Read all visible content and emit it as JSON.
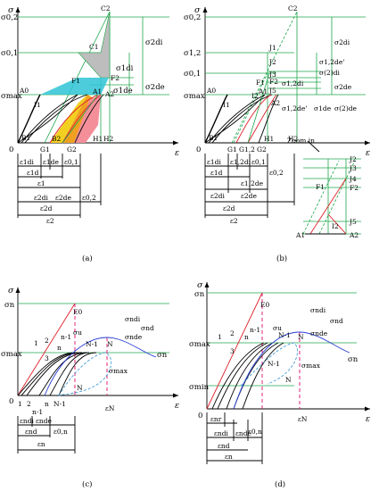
{
  "colors": {
    "green": "#1fa64b",
    "red": "#e0202a",
    "pink": "#e0207a",
    "blue": "#2a3fd6",
    "cyan": "#2ec4d6",
    "orange": "#f0a020",
    "gray": "#bdbdbd",
    "yellow": "#f2d020",
    "salmon": "#f48f9a"
  },
  "panel_a": {
    "caption": "(a)",
    "axis_y": "σ",
    "axis_x": "ε",
    "y_labels": {
      "s02": "σ0,2",
      "s01": "σ0,1",
      "smax": "σmax"
    },
    "origin": "0",
    "points": {
      "C2": "C2",
      "C1": "C1",
      "F1": "F1",
      "F2": "F2",
      "A0": "A0",
      "A1": "A1",
      "A2": "A2",
      "I1": "I1",
      "B1": "B1",
      "B2": "B2",
      "G1": "G1",
      "G2": "G2",
      "H1": "H1",
      "H2": "H2"
    },
    "right_labels": {
      "s2di": "σ2di",
      "s1di": "σ1di",
      "s1de": "σ1de",
      "s2de": "σ2de"
    },
    "bottom_labels": {
      "e1di": "ε1di",
      "e1de": "ε1de",
      "e01": "ε0,1",
      "e1d": "ε1d",
      "e1": "ε1",
      "e2di": "ε2di",
      "e2de": "ε2de",
      "e02": "ε0,2",
      "e2d": "ε2d",
      "e2": "ε2"
    }
  },
  "panel_b": {
    "caption": "(b)",
    "axis_y": "σ",
    "axis_x": "ε",
    "y_labels": {
      "s02": "σ0,2",
      "s12": "σ1,2",
      "s01": "σ0,1",
      "smax": "σmax"
    },
    "origin": "0",
    "points": {
      "C2": "C2",
      "J1": "J1",
      "J2": "J2",
      "J3": "J3",
      "J4": "J4",
      "J5": "J5",
      "F1": "F1",
      "F2": "F2",
      "A0": "A0",
      "A1": "A1",
      "A2": "A2",
      "I1": "I1",
      "I2": "I2",
      "B1": "B1",
      "G1": "G1",
      "G12": "G1,2",
      "G2": "G2",
      "H1": "H1",
      "H2": "H2"
    },
    "zoom": "Zoom in",
    "right_labels": {
      "s1": "σ1",
      "s2di": "σ2di",
      "s12de": "σ1,2de'",
      "s12di": "σ1,2di",
      "s2di2": "σ(2)di",
      "s12dep": "σ1,2de",
      "s2de": "σ2de",
      "s12den": "σ1,2de'",
      "s1de": "σ1de",
      "s2de2": "σ(2)de",
      "s1di": "σ1di",
      "s2de3": "σ(2)de"
    },
    "bottom_labels": {
      "e1di": "ε1di",
      "e12di": "ε1,2di",
      "e01": "ε0,1",
      "e1d": "ε1d",
      "e12de": "ε1,2de",
      "e02": "ε0,2",
      "e2di": "ε2di",
      "e2de": "ε2de",
      "e2d": "ε2d",
      "e2": "ε2"
    }
  },
  "panel_c": {
    "caption": "(c)",
    "axis_y": "σ",
    "axis_x": "ε",
    "y_labels": {
      "sn": "σn",
      "smax": "σmax"
    },
    "origin": "0",
    "curve_labels": {
      "E0": "E0",
      "su": "σu",
      "c1": "1",
      "c2": "2",
      "c3": "3",
      "cn": "n",
      "cn1": "n-1",
      "cN1": "N-1",
      "cN": "N",
      "cN2": "N",
      "cN3": "N-1",
      "cN4": "N"
    },
    "x_ticks": {
      "t1": "1",
      "t2": "2",
      "tn": "n",
      "tn1": "n-1",
      "tN1": "N-1"
    },
    "right_labels": {
      "sndi": "σndi",
      "snde": "σnde",
      "snd": "σnd",
      "sn": "σn",
      "smax": "σmax"
    },
    "bottom_labels": {
      "endi": "εndi",
      "ende": "εnde",
      "e0n": "ε0,n",
      "end": "εnd",
      "en": "εn",
      "eN": "εN"
    }
  },
  "panel_d": {
    "caption": "(d)",
    "axis_y": "σ",
    "axis_x": "ε",
    "y_labels": {
      "sn": "σn",
      "smax": "σmax",
      "smin": "σmin"
    },
    "origin": "0",
    "curve_labels": {
      "E0": "E0",
      "su": "σu",
      "c1": "1",
      "c2": "2",
      "c3": "3",
      "cn": "n",
      "cn1": "n-1",
      "cN1": "N-1",
      "cN": "N",
      "cN2": "N-1",
      "cN3": "N"
    },
    "right_labels": {
      "sndi": "σndi",
      "snde": "σnde",
      "snd": "σnd",
      "sn": "σn",
      "smax": "σmax"
    },
    "bottom_labels": {
      "endi": "εndi",
      "ende": "εnde",
      "e0n": "ε0,n",
      "end": "εnd",
      "en": "εn",
      "eN": "εN",
      "er": "εnr"
    }
  }
}
